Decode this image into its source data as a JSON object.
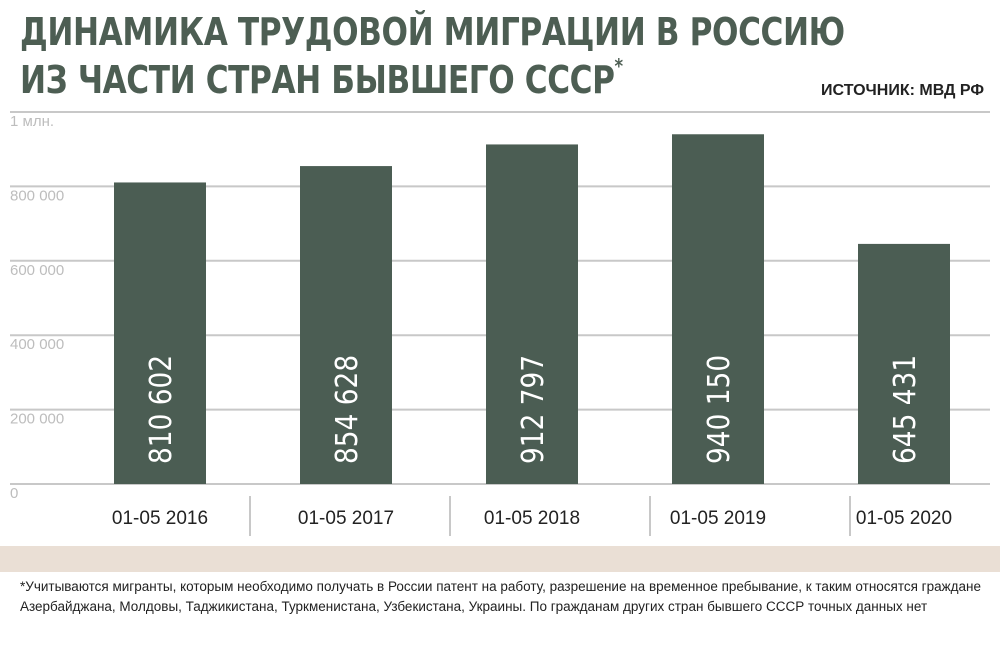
{
  "title_line1": "ДИНАМИКА ТРУДОВОЙ МИГРАЦИИ В РОССИЮ",
  "title_line2": "ИЗ ЧАСТИ СТРАН БЫВШЕГО СССР",
  "title_mark": "*",
  "source": "ИСТОЧНИК: МВД РФ",
  "footnote": "*Учитываются мигранты, которым необходимо получать в России патент на работу, разрешение на временное пребывание, к таким относятся граждане Азербайджана, Молдовы, Таджикистана, Туркменистана, Узбекистана, Украины. По гражданам других стран бывшего СССР точных данных нет",
  "colors": {
    "bar": "#4b5d53",
    "title": "#4d5e53",
    "grid": "#c8c8c8",
    "band": "#eadfd5"
  },
  "chart_data": {
    "type": "bar",
    "categories": [
      "01-05 2016",
      "01-05 2017",
      "01-05 2018",
      "01-05 2019",
      "01-05 2020"
    ],
    "values": [
      810602,
      854628,
      912797,
      940150,
      645431
    ],
    "value_labels": [
      "810 602",
      "854 628",
      "912 797",
      "940 150",
      "645 431"
    ],
    "yticks": [
      0,
      200000,
      400000,
      600000,
      800000,
      1000000
    ],
    "ytick_labels": [
      "0",
      "200 000",
      "400 000",
      "600 000",
      "800 000",
      "1 млн."
    ],
    "ylim": [
      0,
      1000000
    ],
    "grid": true,
    "legend": "none"
  }
}
